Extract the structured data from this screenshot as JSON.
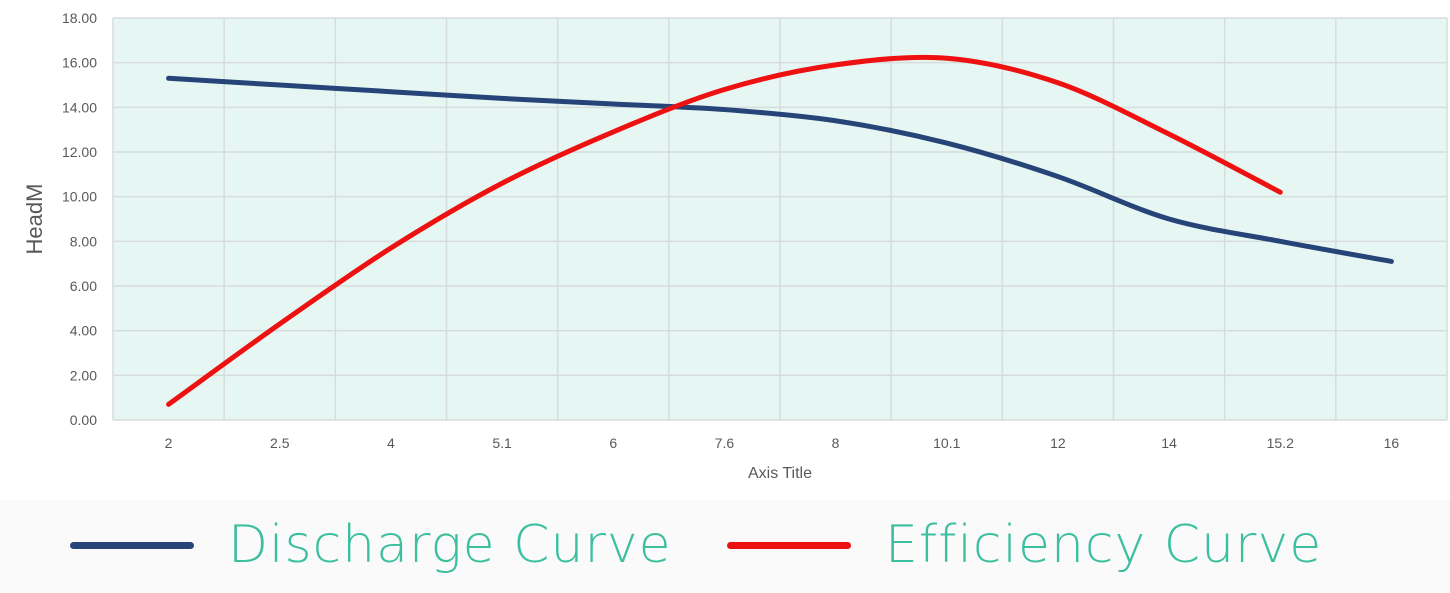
{
  "colors": {
    "plot_background": "#e6f7f3",
    "gridline": "#d6dcdc",
    "axis_text": "#595959",
    "legend_text": "#3bbf9e"
  },
  "chart_data": {
    "type": "line",
    "title": "",
    "xlabel": "Axis Title",
    "ylabel": "HeadM",
    "categories": [
      "2",
      "2.5",
      "4",
      "5.1",
      "6",
      "7.6",
      "8",
      "10.1",
      "12",
      "14",
      "15.2",
      "16"
    ],
    "ylim": [
      0,
      18
    ],
    "y_ticks": [
      "0.00",
      "2.00",
      "4.00",
      "6.00",
      "8.00",
      "10.00",
      "12.00",
      "14.00",
      "16.00",
      "18.00"
    ],
    "grid": true,
    "legend_position": "bottom",
    "series": [
      {
        "name": "Discharge Curve",
        "color": "#264478",
        "values": [
          15.3,
          15.0,
          14.7,
          14.4,
          14.15,
          13.9,
          13.4,
          12.4,
          10.9,
          9.0,
          8.0,
          7.1
        ]
      },
      {
        "name": "Efficiency Curve",
        "color": "#ee1111",
        "values": [
          0.7,
          4.3,
          7.7,
          10.6,
          12.9,
          14.8,
          15.9,
          16.2,
          15.1,
          12.8,
          10.2,
          null
        ]
      }
    ]
  }
}
